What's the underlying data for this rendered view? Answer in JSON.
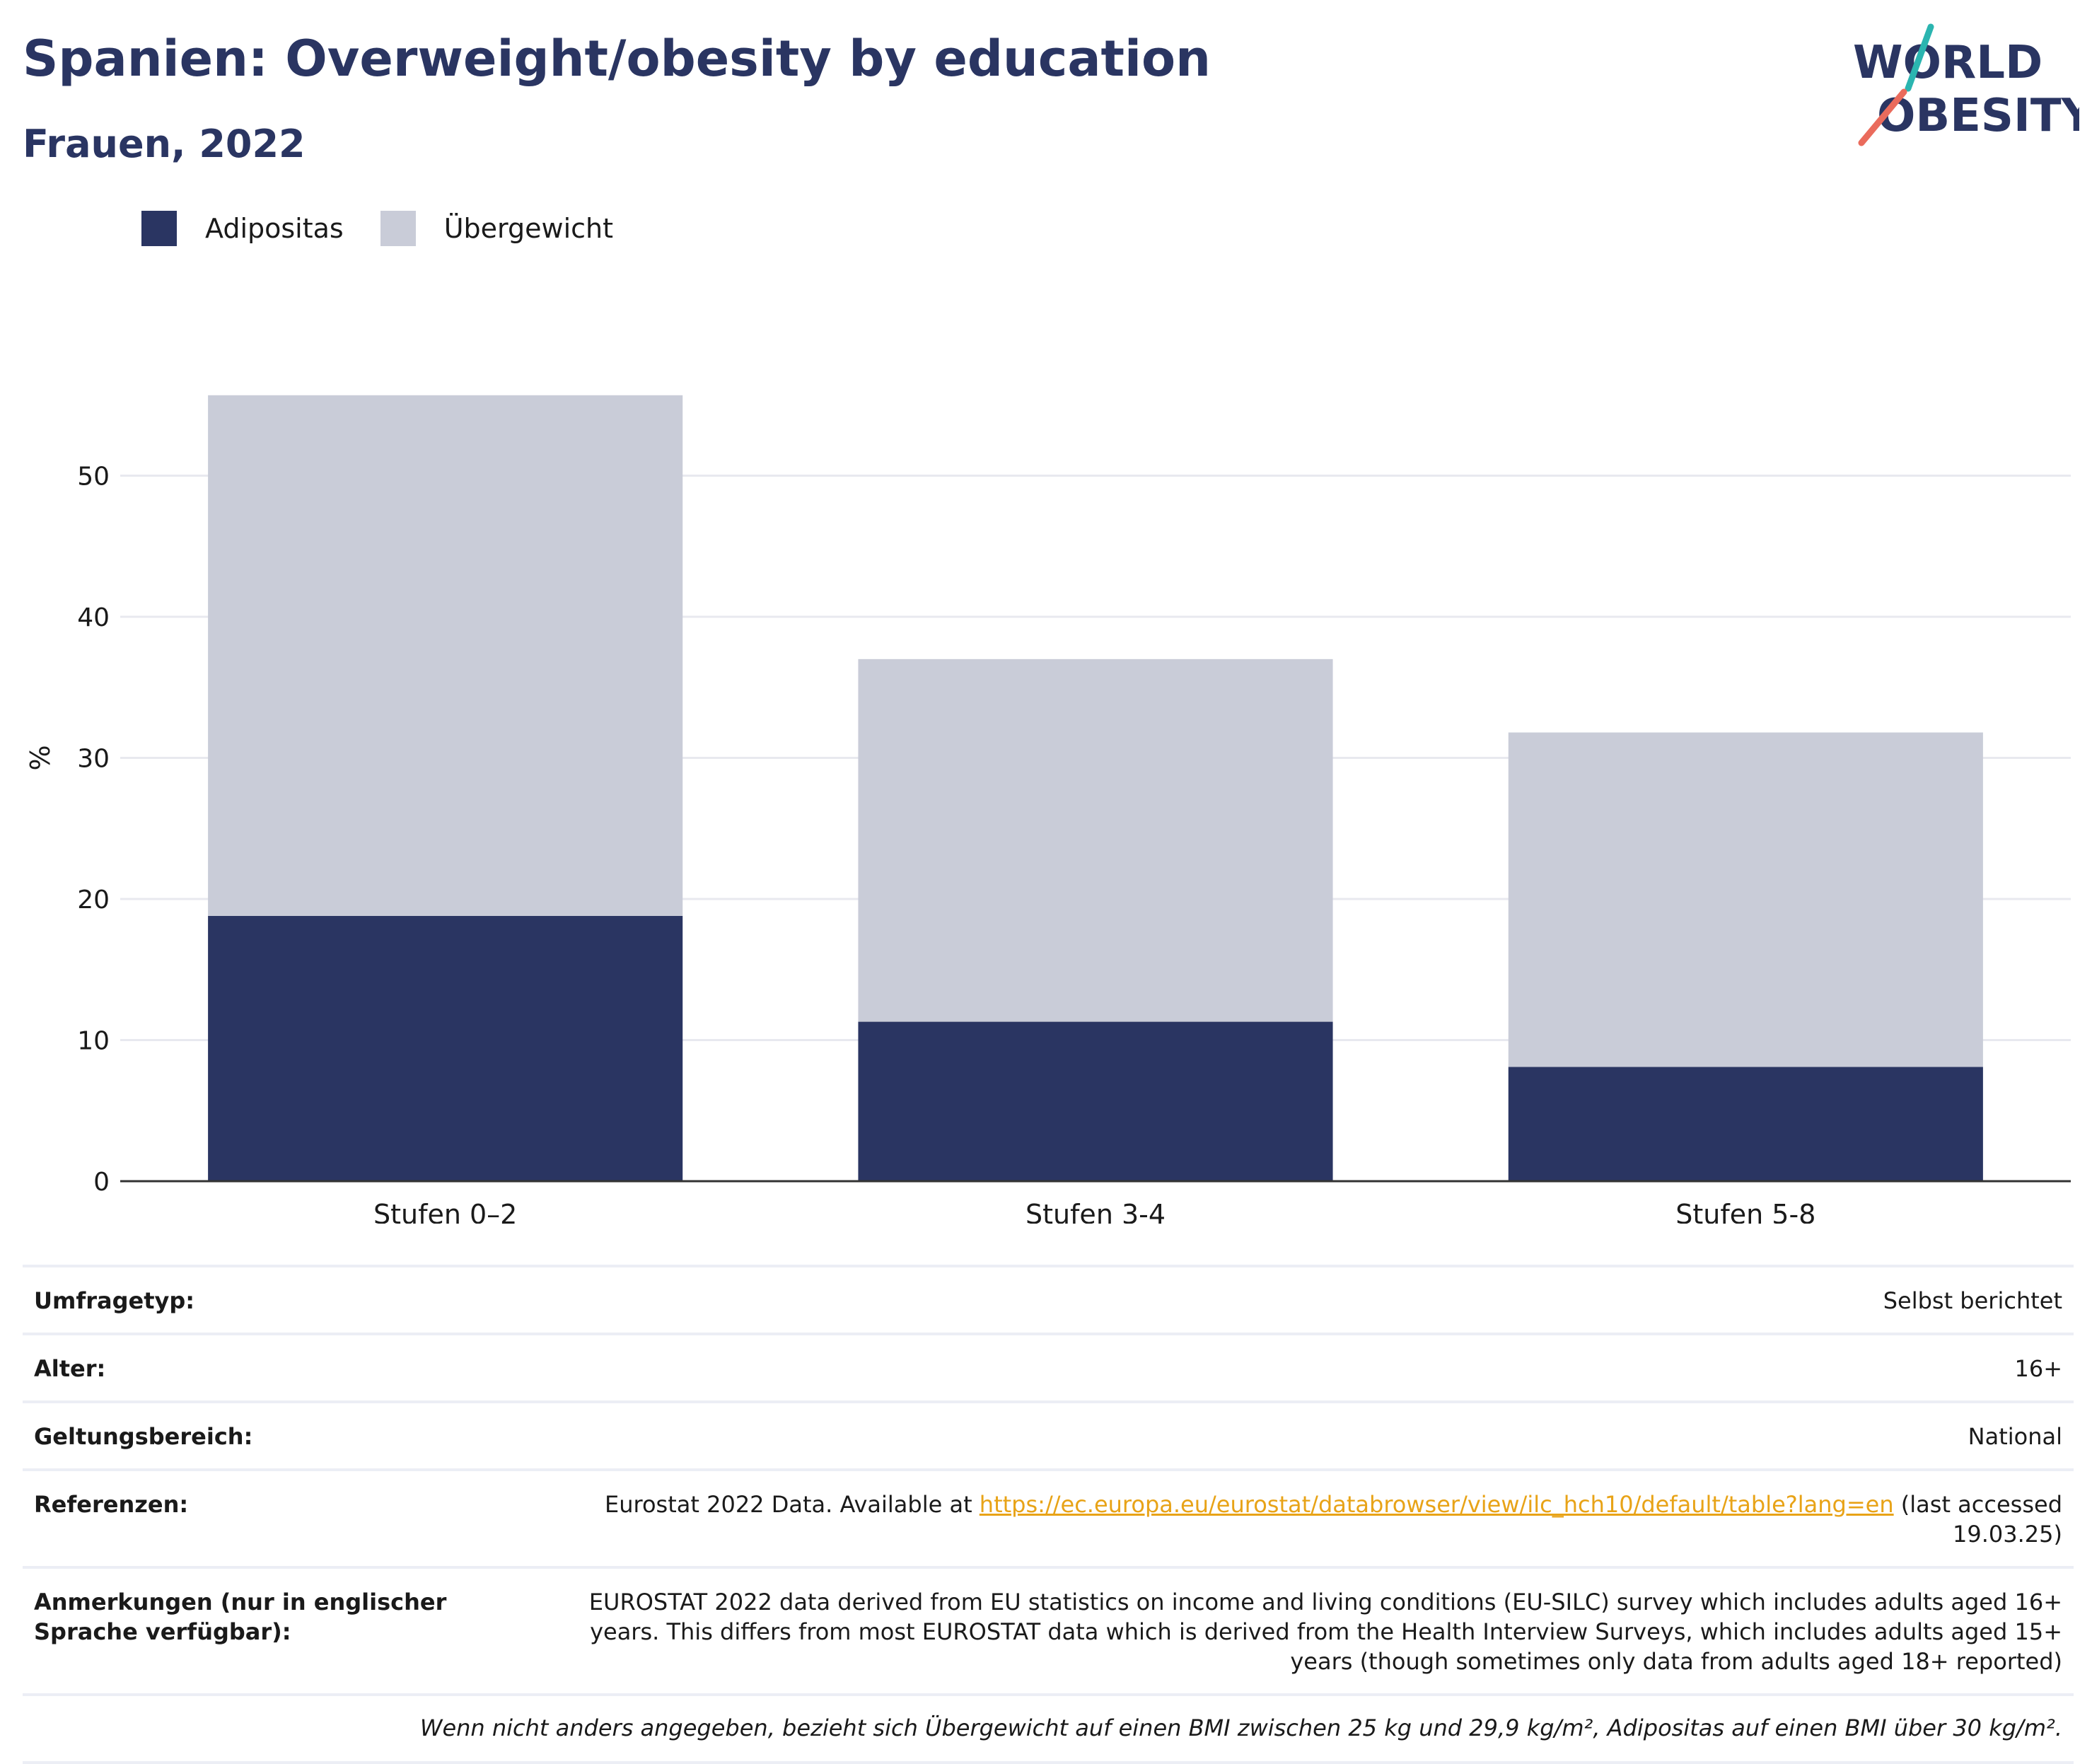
{
  "header": {
    "title": "Spanien: Overweight/obesity by education",
    "subtitle": "Frauen, 2022"
  },
  "logo": {
    "line1": "WORLD",
    "line2": "OBESITY",
    "accent_teal": "#2bb5b0",
    "accent_coral": "#ea6b5c",
    "text_color": "#2a3562"
  },
  "colors": {
    "obesity": "#2a3562",
    "overweight": "#c9ccd8",
    "grid": "#e8e9ef",
    "axis": "#333333"
  },
  "legend": [
    {
      "label": "Adipositas",
      "color": "#2a3562"
    },
    {
      "label": "Übergewicht",
      "color": "#c9ccd8"
    }
  ],
  "chart_data": {
    "type": "bar",
    "stacked": true,
    "categories": [
      "Stufen 0–2",
      "Stufen 3-4",
      "Stufen 5-8"
    ],
    "series": [
      {
        "name": "Adipositas",
        "values": [
          18.8,
          11.3,
          8.1
        ]
      },
      {
        "name": "Übergewicht",
        "values": [
          36.9,
          25.7,
          23.7
        ]
      }
    ],
    "ylabel": "%",
    "ylim": [
      0,
      60
    ],
    "yticks": [
      0,
      10,
      20,
      30,
      40,
      50
    ],
    "grid": true,
    "legend_position": "top-left"
  },
  "meta": {
    "survey_type_label": "Umfragetyp:",
    "survey_type_value": "Selbst berichtet",
    "age_label": "Alter:",
    "age_value": "16+",
    "scope_label": "Geltungsbereich:",
    "scope_value": "National",
    "references_label": "Referenzen:",
    "references_prefix": "Eurostat 2022 Data. Available at ",
    "references_link": "https://ec.europa.eu/eurostat/databrowser/view/ilc_hch10/default/table?lang=en",
    "references_suffix": " (last accessed 19.03.25)",
    "notes_label": "Anmerkungen (nur in englischer Sprache verfügbar):",
    "notes_value": "EUROSTAT 2022 data derived from EU statistics on income and living conditions (EU-SILC) survey which includes adults aged 16+ years. This differs from most EUROSTAT data which is derived from the Health Interview Surveys, which includes adults aged 15+ years (though sometimes only data from adults aged 18+ reported)",
    "footnote": "Wenn nicht anders angegeben, bezieht sich Übergewicht auf einen BMI zwischen 25 kg und 29,9 kg/m², Adipositas auf einen BMI über 30 kg/m²."
  }
}
